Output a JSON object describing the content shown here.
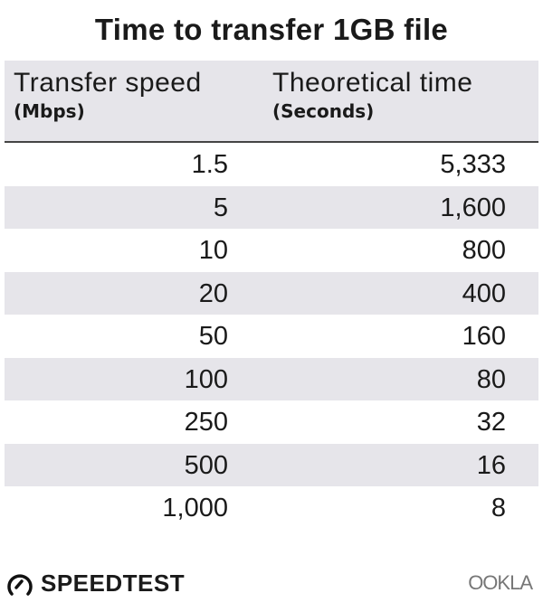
{
  "chart_data": {
    "type": "table",
    "title": "Time to transfer 1GB file",
    "columns": [
      {
        "label": "Transfer speed",
        "unit": "(Mbps)"
      },
      {
        "label": "Theoretical time",
        "unit": "(Seconds)"
      }
    ],
    "rows": [
      [
        "1.5",
        "5,333"
      ],
      [
        "5",
        "1,600"
      ],
      [
        "10",
        "800"
      ],
      [
        "20",
        "400"
      ],
      [
        "50",
        "160"
      ],
      [
        "100",
        "80"
      ],
      [
        "250",
        "32"
      ],
      [
        "500",
        "16"
      ],
      [
        "1,000",
        "8"
      ]
    ]
  },
  "footer": {
    "brand": "SPEEDTEST",
    "logo_right": "OOKLA"
  },
  "colors": {
    "stripe": "#e6e5ea",
    "text": "#1a1a1a"
  }
}
